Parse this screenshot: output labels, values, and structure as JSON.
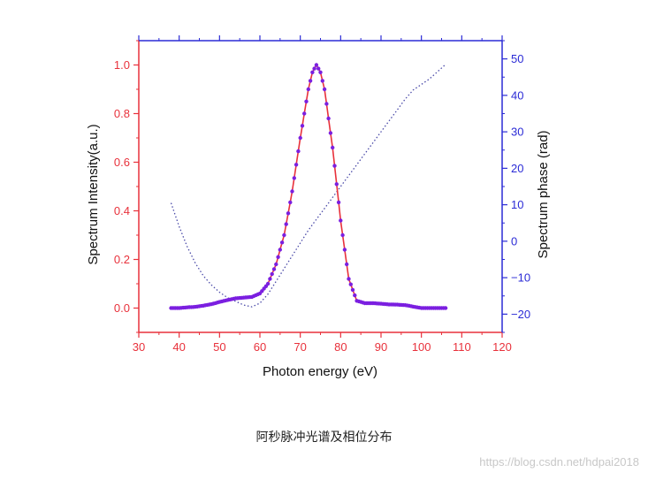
{
  "caption": "阿秒脉冲光谱及相位分布",
  "watermark": "https://blog.csdn.net/hdpai2018",
  "chart_data": {
    "type": "line",
    "title": "",
    "xlabel": "Photon energy (eV)",
    "ylabel_left": "Spectrum Intensity(a.u.)",
    "ylabel_right": "Spectrum phase (rad)",
    "xlim": [
      30,
      120
    ],
    "ylim_left": [
      -0.1,
      1.1
    ],
    "ylim_right": [
      -25,
      55
    ],
    "x_ticks": [
      "30",
      "40",
      "50",
      "60",
      "70",
      "80",
      "90",
      "100",
      "110",
      "120"
    ],
    "y_left_ticks": [
      "0.0",
      "0.2",
      "0.4",
      "0.6",
      "0.8",
      "1.0"
    ],
    "y_right_ticks": [
      "-20",
      "-10",
      "0",
      "10",
      "20",
      "30",
      "40",
      "50"
    ],
    "grid": false,
    "legend": "none",
    "colors": {
      "left_axis": "#e8313b",
      "right_axis": "#2b2bd6",
      "intensity_markers": "#7b1fe0",
      "intensity_line": "#e8313b",
      "phase_line": "#4a4aa8"
    },
    "series": [
      {
        "axis": "left",
        "style": "markers+line",
        "x": [
          38,
          40,
          42,
          44,
          46,
          48,
          50,
          52,
          54,
          56,
          58,
          60,
          62,
          64,
          66,
          68,
          70,
          72,
          73,
          74,
          75,
          76,
          78,
          80,
          82,
          84,
          86,
          88,
          90,
          92,
          94,
          96,
          98,
          100,
          102,
          104,
          106
        ],
        "values": [
          0.0,
          0.0,
          0.003,
          0.005,
          0.01,
          0.016,
          0.025,
          0.033,
          0.04,
          0.043,
          0.046,
          0.06,
          0.1,
          0.18,
          0.3,
          0.48,
          0.7,
          0.9,
          0.97,
          1.0,
          0.97,
          0.9,
          0.66,
          0.36,
          0.12,
          0.03,
          0.02,
          0.02,
          0.018,
          0.015,
          0.014,
          0.012,
          0.006,
          0.0,
          0.0,
          0.0,
          0.0
        ]
      },
      {
        "axis": "right",
        "style": "dotted",
        "x": [
          38,
          40,
          42,
          44,
          46,
          48,
          50,
          52,
          54,
          56,
          58,
          60,
          62,
          64,
          66,
          68,
          70,
          72,
          74,
          76,
          78,
          80,
          82,
          84,
          86,
          88,
          90,
          92,
          94,
          96,
          98,
          100,
          102,
          104,
          106
        ],
        "values": [
          10.5,
          4,
          -1.5,
          -6,
          -9.5,
          -12,
          -14,
          -15.5,
          -16.5,
          -17.5,
          -18,
          -17,
          -14.5,
          -11,
          -7.5,
          -4,
          -0.5,
          3,
          6,
          9,
          12,
          15,
          18,
          21,
          24,
          27,
          30,
          33,
          36,
          39,
          41.5,
          43,
          44.5,
          46.5,
          48.5
        ]
      }
    ]
  }
}
